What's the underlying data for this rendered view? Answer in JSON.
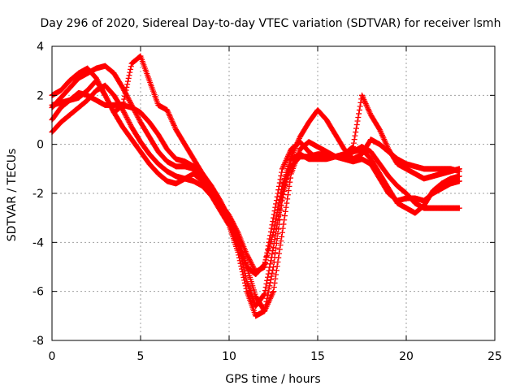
{
  "chart_data": {
    "type": "scatter",
    "title": "Day 296 of 2020, Sidereal Day-to-day VTEC variation (SDTVAR) for receiver lsmh",
    "xlabel": "GPS time / hours",
    "ylabel": "SDTVAR / TECUs",
    "xlim": [
      0,
      25
    ],
    "ylim": [
      -8,
      4
    ],
    "xticks": [
      "0",
      "5",
      "10",
      "15",
      "20",
      "25"
    ],
    "yticks": [
      "-8",
      "-6",
      "-4",
      "-2",
      "0",
      "2",
      "4"
    ],
    "grid": true,
    "marker": "+",
    "color": "#ff0000",
    "series": [
      {
        "x": [
          0,
          0.5,
          1,
          1.5,
          2,
          2.5,
          3,
          3.5,
          4,
          4.5,
          5,
          5.5,
          6,
          6.5,
          7,
          7.5,
          8,
          8.5,
          9,
          9.5,
          10,
          10.5,
          11,
          11.5,
          12,
          12.5,
          13,
          13.5,
          14,
          14.5,
          15,
          15.5,
          16,
          16.5,
          17,
          17.5,
          18,
          18.5,
          19,
          19.5,
          20,
          20.5,
          21,
          21.5,
          22,
          22.5,
          23
        ],
        "y": [
          2.0,
          2.2,
          2.6,
          2.9,
          3.1,
          2.7,
          2.0,
          1.3,
          0.7,
          0.2,
          -0.3,
          -0.8,
          -1.2,
          -1.5,
          -1.6,
          -1.4,
          -1.2,
          -1.5,
          -1.9,
          -2.4,
          -2.9,
          -3.6,
          -4.5,
          -5.2,
          -5.0,
          -3.0,
          -1.0,
          -0.2,
          0.1,
          -0.3,
          -0.6,
          -0.6,
          -0.5,
          -0.4,
          -0.3,
          -0.2,
          -0.6,
          -1.2,
          -1.8,
          -2.4,
          -2.6,
          -2.8,
          -2.5,
          -1.9,
          -1.6,
          -1.4,
          -1.3
        ]
      },
      {
        "x": [
          0,
          0.5,
          1,
          1.5,
          2,
          2.5,
          3,
          3.5,
          4,
          4.5,
          5,
          5.5,
          6,
          6.5,
          7,
          7.5,
          8,
          8.5,
          9,
          9.5,
          10,
          10.5,
          11,
          11.5,
          12,
          12.5,
          13,
          13.5,
          14,
          14.5,
          15,
          15.5,
          16,
          16.5,
          17,
          17.5,
          18,
          18.5,
          19,
          19.5,
          20,
          20.5,
          21,
          21.5,
          22,
          22.5,
          23
        ],
        "y": [
          1.5,
          1.9,
          2.3,
          2.7,
          2.9,
          3.1,
          3.2,
          2.9,
          2.3,
          1.6,
          0.9,
          0.3,
          -0.3,
          -0.7,
          -0.9,
          -0.9,
          -1.0,
          -1.4,
          -1.9,
          -2.5,
          -3.2,
          -4.1,
          -5.0,
          -5.3,
          -4.9,
          -3.6,
          -1.7,
          -0.6,
          -0.4,
          -0.6,
          -0.6,
          -0.5,
          -0.5,
          -0.6,
          -0.7,
          -0.6,
          -0.8,
          -1.4,
          -2.0,
          -2.3,
          -2.2,
          -2.2,
          -2.3,
          -2.0,
          -1.8,
          -1.6,
          -1.5
        ]
      },
      {
        "x": [
          0,
          0.5,
          1,
          1.5,
          2,
          2.5,
          3,
          3.5,
          4,
          4.5,
          5,
          5.5,
          6,
          6.5,
          7,
          7.5,
          8,
          8.5,
          9,
          9.5,
          10,
          10.5,
          11,
          11.5,
          12,
          12.5,
          13,
          13.5,
          14,
          14.5,
          15,
          15.5,
          16,
          16.5,
          17,
          17.5,
          18,
          18.5,
          19,
          19.5,
          20,
          20.5,
          21,
          21.5,
          22,
          22.5,
          23
        ],
        "y": [
          1.0,
          1.5,
          1.8,
          2.1,
          2.0,
          1.8,
          1.6,
          1.6,
          1.6,
          1.5,
          1.3,
          0.9,
          0.4,
          -0.2,
          -0.6,
          -0.7,
          -0.9,
          -1.2,
          -1.7,
          -2.3,
          -3.0,
          -4.0,
          -5.6,
          -6.6,
          -6.1,
          -4.2,
          -2.0,
          -0.9,
          -0.5,
          -0.5,
          -0.4,
          -0.4,
          -0.5,
          -0.5,
          -0.3,
          -0.1,
          -0.3,
          -0.8,
          -1.3,
          -1.7,
          -2.0,
          -2.4,
          -2.6,
          -2.6,
          -2.6,
          -2.6,
          -2.6
        ]
      },
      {
        "x": [
          0,
          0.5,
          1,
          1.5,
          2,
          2.5,
          3,
          3.5,
          4,
          4.5,
          5,
          5.5,
          6,
          6.5,
          7,
          7.5,
          8,
          8.5,
          9,
          9.5,
          10,
          10.5,
          11,
          11.5,
          12,
          12.5,
          13,
          13.5,
          14,
          14.5,
          15,
          15.5,
          16,
          16.5,
          17,
          17.5,
          18,
          18.5,
          19,
          19.5,
          20,
          20.5,
          21,
          21.5,
          22,
          22.5,
          23
        ],
        "y": [
          0.5,
          0.9,
          1.2,
          1.5,
          1.8,
          2.2,
          2.4,
          2.0,
          1.4,
          0.7,
          0.1,
          -0.4,
          -0.8,
          -1.1,
          -1.3,
          -1.4,
          -1.5,
          -1.7,
          -2.1,
          -2.7,
          -3.3,
          -4.4,
          -6.0,
          -7.0,
          -6.8,
          -5.0,
          -2.3,
          -0.5,
          0.3,
          0.9,
          1.4,
          1.0,
          0.4,
          -0.2,
          -0.6,
          -0.4,
          0.2,
          0.0,
          -0.3,
          -0.6,
          -0.8,
          -0.9,
          -1.0,
          -1.0,
          -1.0,
          -1.0,
          -1.1
        ]
      },
      {
        "x": [
          0,
          0.5,
          1,
          1.5,
          2,
          2.5,
          3,
          3.5,
          4,
          4.5,
          5,
          5.5,
          6,
          6.5,
          7,
          7.5,
          8,
          8.5,
          9,
          9.5,
          10,
          10.5,
          11,
          11.5,
          12,
          12.5,
          13,
          13.5,
          14,
          14.5,
          15,
          15.5,
          16,
          16.5,
          17,
          17.5,
          18,
          18.5,
          19,
          19.5,
          20,
          20.5,
          21,
          21.5,
          22,
          22.5,
          23
        ],
        "y": [
          1.6,
          1.7,
          1.8,
          1.9,
          2.2,
          2.6,
          2.0,
          1.3,
          1.6,
          3.3,
          3.6,
          2.6,
          1.6,
          1.4,
          0.6,
          0.0,
          -0.6,
          -1.2,
          -1.8,
          -2.4,
          -3.0,
          -3.8,
          -5.0,
          -6.2,
          -6.8,
          -6.0,
          -3.6,
          -1.2,
          -0.2,
          0.1,
          -0.1,
          -0.3,
          -0.5,
          -0.4,
          -0.1,
          2.0,
          1.2,
          0.6,
          -0.2,
          -0.8,
          -1.0,
          -1.2,
          -1.4,
          -1.3,
          -1.2,
          -1.1,
          -1.0
        ]
      }
    ]
  }
}
